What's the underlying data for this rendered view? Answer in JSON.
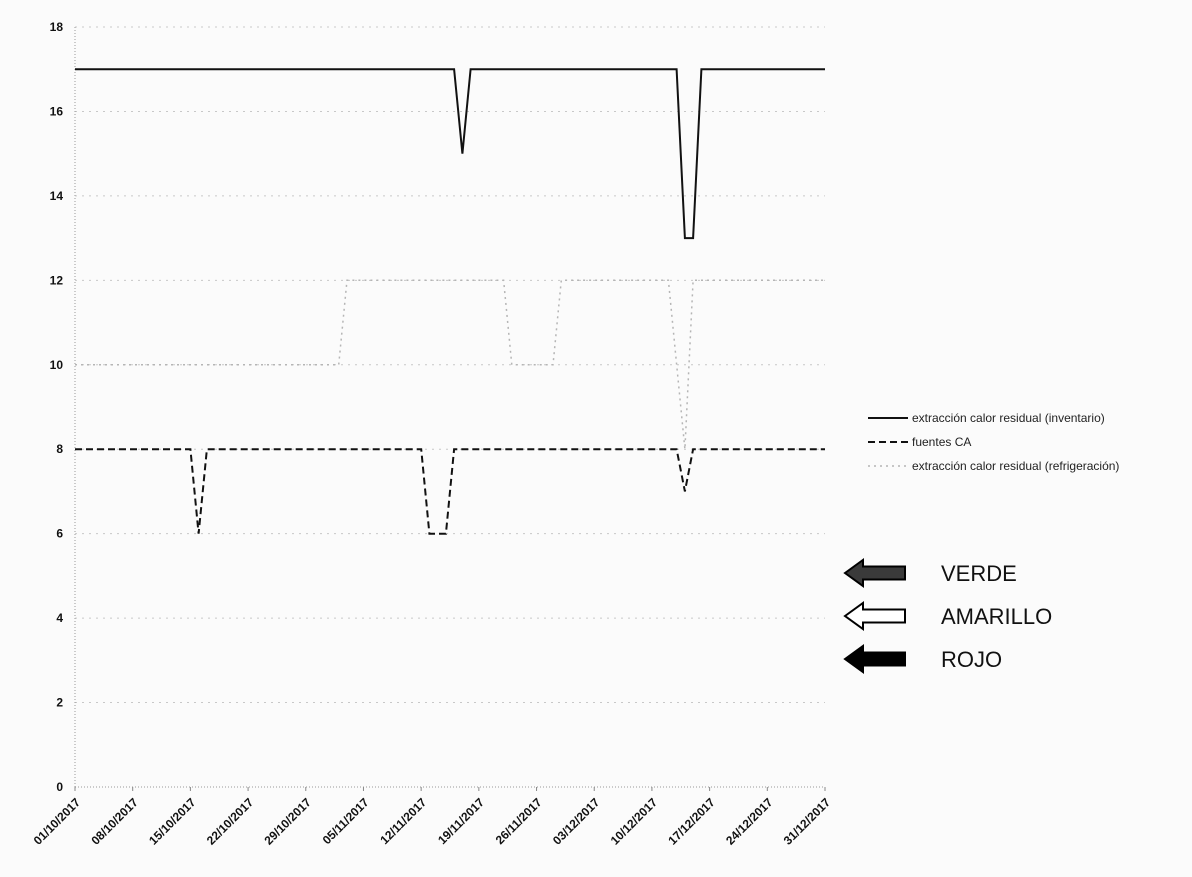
{
  "chart_data": {
    "type": "line",
    "x": [
      "01/10/2017",
      "08/10/2017",
      "15/10/2017",
      "22/10/2017",
      "29/10/2017",
      "05/11/2017",
      "12/11/2017",
      "19/11/2017",
      "26/11/2017",
      "03/12/2017",
      "10/12/2017",
      "17/12/2017",
      "24/12/2017",
      "31/12/2017"
    ],
    "x_start": "01/10/2017",
    "x_end": "31/12/2017",
    "ylim": [
      0,
      18
    ],
    "yticks": [
      0,
      2,
      4,
      6,
      8,
      10,
      12,
      14,
      16,
      18
    ],
    "grid": true,
    "legend_position": "right",
    "series": [
      {
        "name": "extracción calor residual (inventario)",
        "style": "solid",
        "color": "#111111",
        "points": [
          [
            "01/10/2017",
            17
          ],
          [
            "16/11/2017",
            17
          ],
          [
            "17/11/2017",
            15
          ],
          [
            "18/11/2017",
            17
          ],
          [
            "13/12/2017",
            17
          ],
          [
            "14/12/2017",
            13
          ],
          [
            "15/12/2017",
            13
          ],
          [
            "16/12/2017",
            17
          ],
          [
            "31/12/2017",
            17
          ]
        ]
      },
      {
        "name": "fuentes CA",
        "style": "dashed",
        "color": "#111111",
        "points": [
          [
            "01/10/2017",
            8
          ],
          [
            "15/10/2017",
            8
          ],
          [
            "16/10/2017",
            6
          ],
          [
            "17/10/2017",
            8
          ],
          [
            "12/11/2017",
            8
          ],
          [
            "13/11/2017",
            6
          ],
          [
            "15/11/2017",
            6
          ],
          [
            "16/11/2017",
            8
          ],
          [
            "13/12/2017",
            8
          ],
          [
            "14/12/2017",
            7
          ],
          [
            "15/12/2017",
            8
          ],
          [
            "31/12/2017",
            8
          ]
        ]
      },
      {
        "name": "extracción calor residual (refrigeración)",
        "style": "dotted",
        "color": "#b5b5b5",
        "points": [
          [
            "01/10/2017",
            10
          ],
          [
            "02/11/2017",
            10
          ],
          [
            "03/11/2017",
            12
          ],
          [
            "22/11/2017",
            12
          ],
          [
            "23/11/2017",
            10
          ],
          [
            "28/11/2017",
            10
          ],
          [
            "29/11/2017",
            12
          ],
          [
            "12/12/2017",
            12
          ],
          [
            "14/12/2017",
            8
          ],
          [
            "15/12/2017",
            12
          ],
          [
            "31/12/2017",
            12
          ]
        ]
      }
    ],
    "status_legend": [
      {
        "label": "VERDE",
        "fill": "#3a3a3a"
      },
      {
        "label": "AMARILLO",
        "fill": "#ffffff"
      },
      {
        "label": "ROJO",
        "fill": "#000000"
      }
    ]
  }
}
